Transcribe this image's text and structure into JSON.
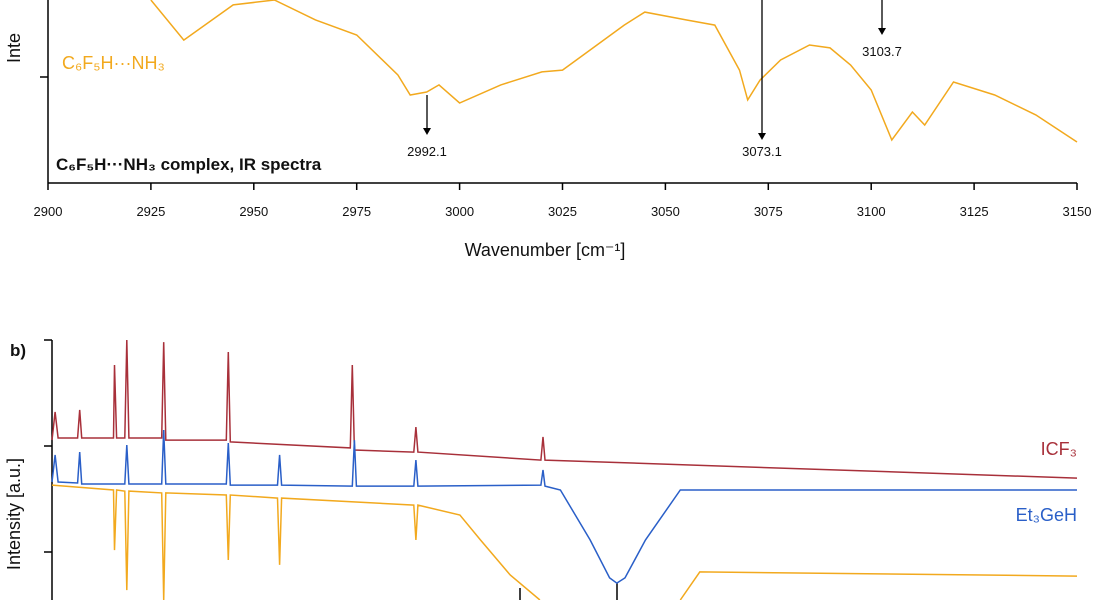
{
  "chart_data": [
    {
      "type": "line",
      "title": "C₆F₅H···NH₃ complex, IR spectra",
      "y_label": "Inte",
      "x_label": "Wavenumber [cm⁻¹]",
      "xlim": [
        2900,
        3150
      ],
      "xticks": [
        2900,
        2925,
        2950,
        2975,
        3000,
        3025,
        3050,
        3075,
        3100,
        3125,
        3150
      ],
      "ylim": [
        0,
        100
      ],
      "annotations": [
        "2992.1",
        "3073.1",
        "3103.7"
      ],
      "series": [
        {
          "name": "C₆F₅H···NH₃",
          "color": "#f2a91e",
          "x": [
            2925,
            2933,
            2945,
            2955,
            2965,
            2975,
            2985,
            2988,
            2992,
            2995,
            3000,
            3010,
            3020,
            3025,
            3030,
            3040,
            3045,
            3055,
            3062,
            3068,
            3070,
            3073,
            3078,
            3085,
            3090,
            3095,
            3100,
            3105,
            3110,
            3113,
            3120,
            3130,
            3140,
            3150
          ],
          "values": [
            100,
            78.1,
            97.3,
            100,
            89.1,
            80.9,
            59.0,
            48.1,
            49.7,
            53.6,
            43.7,
            53.6,
            60.7,
            61.7,
            69.9,
            86.3,
            93.4,
            89.1,
            86.3,
            61.7,
            45.4,
            56.3,
            67.2,
            75.4,
            73.8,
            64.5,
            50.8,
            23.5,
            38.8,
            31.7,
            55.2,
            48.1,
            37.2,
            22.4
          ]
        }
      ]
    },
    {
      "type": "line",
      "panel_label": "b)",
      "y_label": "Intensity [a.u.]",
      "xlim": [
        0,
        100
      ],
      "ylim": [
        0,
        100
      ],
      "series": [
        {
          "name": "ICF₃",
          "color": "#a8303a",
          "x": [
            0,
            0.3,
            0.6,
            2.5,
            2.7,
            2.9,
            6.0,
            6.1,
            6.3,
            7.1,
            7.3,
            7.5,
            10.7,
            10.9,
            11.1,
            17.0,
            17.2,
            17.4,
            29.1,
            29.3,
            29.5,
            35.3,
            35.5,
            35.7,
            47.7,
            47.9,
            48.1,
            100
          ],
          "values": [
            61.5,
            72.3,
            62.3,
            62.3,
            73.1,
            62.3,
            62.3,
            90.4,
            62.3,
            62.3,
            100,
            62.3,
            62.3,
            99.2,
            61.5,
            61.5,
            95.4,
            60.8,
            58.5,
            90.4,
            57.7,
            56.9,
            66.5,
            56.9,
            53.8,
            62.7,
            53.8,
            46.9
          ]
        },
        {
          "name": "Et₃GeH",
          "color": "#2a5fc8",
          "x": [
            0,
            0.3,
            0.6,
            2.5,
            2.7,
            2.9,
            7.1,
            7.3,
            7.5,
            10.7,
            10.9,
            11.1,
            17.0,
            17.2,
            17.4,
            22.0,
            22.2,
            22.4,
            29.3,
            29.5,
            29.7,
            35.3,
            35.5,
            35.7,
            47.7,
            47.9,
            48.1,
            49.6,
            52.5,
            54.4,
            55.1,
            55.9,
            57.9,
            61.3,
            100
          ],
          "values": [
            45.4,
            55.8,
            45.4,
            45.0,
            56.9,
            44.6,
            44.6,
            59.6,
            44.6,
            44.6,
            65.4,
            44.6,
            44.6,
            60.4,
            44.2,
            44.2,
            55.8,
            44.2,
            43.8,
            61.5,
            43.8,
            43.8,
            53.8,
            43.8,
            44.2,
            50.0,
            43.8,
            42.3,
            23.1,
            8.5,
            6.5,
            8.5,
            23.1,
            42.3,
            42.3
          ]
        },
        {
          "name": "",
          "color": "#f2a91e",
          "x": [
            0,
            6.0,
            6.1,
            6.3,
            7.1,
            7.3,
            7.5,
            10.7,
            10.9,
            11.1,
            17.0,
            17.2,
            17.4,
            22.0,
            22.2,
            22.4,
            35.3,
            35.5,
            35.7,
            39.8,
            41.8,
            44.7,
            47.6,
            55,
            61.3,
            63.2,
            100
          ],
          "values": [
            44.2,
            42.3,
            19.2,
            42.3,
            41.9,
            3.8,
            41.9,
            41.2,
            0,
            41.2,
            40.4,
            15.4,
            40.4,
            39.2,
            13.5,
            39.2,
            36.5,
            23.1,
            36.5,
            32.7,
            23.1,
            9.6,
            0,
            null,
            0,
            10.8,
            9.2
          ]
        }
      ]
    }
  ]
}
